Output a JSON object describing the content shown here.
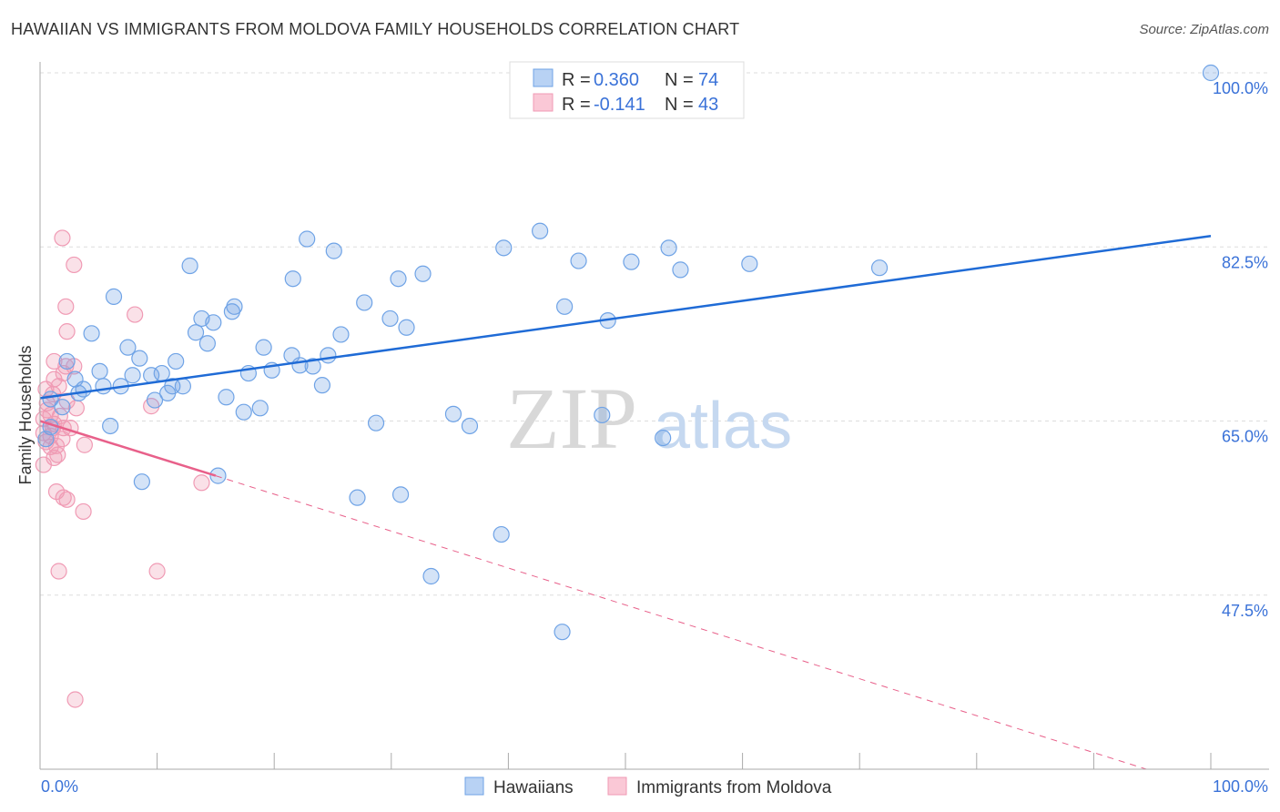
{
  "title": "HAWAIIAN VS IMMIGRANTS FROM MOLDOVA FAMILY HOUSEHOLDS CORRELATION CHART",
  "source": "Source: ZipAtlas.com",
  "watermark": "ZIPatlas",
  "chart_data": {
    "type": "scatter",
    "title": "HAWAIIAN VS IMMIGRANTS FROM MOLDOVA FAMILY HOUSEHOLDS CORRELATION CHART",
    "xlabel": "",
    "ylabel": "Family Households",
    "xlim": [
      0,
      100
    ],
    "ylim": [
      30,
      100
    ],
    "x_tick_labels": [
      "0.0%",
      "100.0%"
    ],
    "y_ticks": [
      100,
      82.5,
      65,
      47.5
    ],
    "y_tick_labels": [
      "100.0%",
      "82.5%",
      "65.0%",
      "47.5%"
    ],
    "grid": true,
    "legend_top": [
      {
        "r_label": "R = ",
        "r": "0.360",
        "n_label": "N = ",
        "n": "74"
      },
      {
        "r_label": "R = ",
        "r": "-0.141",
        "n_label": "N = ",
        "n": "43"
      }
    ],
    "series": [
      {
        "name": "Hawaiians",
        "color": "#6fa3e6",
        "line_color": "#1f6bd6",
        "trend": {
          "x0": 0,
          "y0": 67.3,
          "x1": 100,
          "y1": 83.6
        },
        "points": [
          [
            100,
            100
          ],
          [
            42.7,
            84.1
          ],
          [
            22.8,
            83.3
          ],
          [
            25.1,
            82.1
          ],
          [
            39.6,
            82.4
          ],
          [
            53.7,
            82.4
          ],
          [
            12.8,
            80.6
          ],
          [
            46.0,
            81.1
          ],
          [
            50.5,
            81.0
          ],
          [
            54.7,
            80.2
          ],
          [
            60.6,
            80.8
          ],
          [
            71.7,
            80.4
          ],
          [
            21.6,
            79.3
          ],
          [
            30.6,
            79.3
          ],
          [
            32.7,
            79.8
          ],
          [
            6.3,
            77.5
          ],
          [
            27.7,
            76.9
          ],
          [
            16.6,
            76.5
          ],
          [
            16.4,
            76.0
          ],
          [
            44.8,
            76.5
          ],
          [
            13.8,
            75.3
          ],
          [
            14.8,
            74.9
          ],
          [
            29.9,
            75.3
          ],
          [
            31.3,
            74.4
          ],
          [
            48.5,
            75.1
          ],
          [
            4.4,
            73.8
          ],
          [
            13.3,
            73.9
          ],
          [
            25.7,
            73.7
          ],
          [
            14.3,
            72.8
          ],
          [
            7.5,
            72.4
          ],
          [
            19.1,
            72.4
          ],
          [
            8.5,
            71.3
          ],
          [
            2.3,
            71.0
          ],
          [
            21.5,
            71.6
          ],
          [
            24.6,
            71.6
          ],
          [
            11.6,
            71.0
          ],
          [
            22.2,
            70.6
          ],
          [
            23.3,
            70.5
          ],
          [
            5.1,
            70.0
          ],
          [
            10.4,
            69.8
          ],
          [
            7.9,
            69.6
          ],
          [
            9.5,
            69.6
          ],
          [
            17.8,
            69.8
          ],
          [
            19.8,
            70.1
          ],
          [
            3.0,
            69.2
          ],
          [
            5.4,
            68.5
          ],
          [
            6.9,
            68.5
          ],
          [
            12.2,
            68.5
          ],
          [
            11.3,
            68.5
          ],
          [
            24.1,
            68.6
          ],
          [
            3.7,
            68.2
          ],
          [
            3.3,
            67.8
          ],
          [
            10.9,
            67.8
          ],
          [
            9.8,
            67.1
          ],
          [
            15.9,
            67.4
          ],
          [
            0.9,
            67.2
          ],
          [
            1.9,
            66.4
          ],
          [
            17.4,
            65.9
          ],
          [
            18.8,
            66.3
          ],
          [
            35.3,
            65.7
          ],
          [
            48.0,
            65.6
          ],
          [
            28.7,
            64.8
          ],
          [
            36.7,
            64.5
          ],
          [
            6.0,
            64.5
          ],
          [
            53.2,
            63.3
          ],
          [
            15.2,
            59.5
          ],
          [
            8.7,
            58.9
          ],
          [
            27.1,
            57.3
          ],
          [
            30.8,
            57.6
          ],
          [
            39.4,
            53.6
          ],
          [
            33.4,
            49.4
          ],
          [
            44.6,
            43.8
          ],
          [
            0.9,
            64.4
          ],
          [
            0.5,
            63.2
          ]
        ]
      },
      {
        "name": "Immigrants from Moldova",
        "color": "#f09ab4",
        "line_color": "#e8608a",
        "trend": {
          "x0": 0,
          "y0": 65.0,
          "x1": 15,
          "y1": 59.5,
          "dash_to_x": 94.5,
          "dash_to_y": 30
        },
        "points": [
          [
            1.9,
            83.4
          ],
          [
            2.9,
            80.7
          ],
          [
            2.2,
            76.5
          ],
          [
            8.1,
            75.7
          ],
          [
            2.3,
            74.0
          ],
          [
            1.2,
            71.0
          ],
          [
            2.2,
            70.5
          ],
          [
            1.2,
            69.2
          ],
          [
            0.5,
            68.2
          ],
          [
            1.6,
            68.5
          ],
          [
            9.5,
            66.5
          ],
          [
            3.1,
            66.3
          ],
          [
            0.6,
            66.8
          ],
          [
            0.9,
            65.6
          ],
          [
            0.3,
            65.2
          ],
          [
            1.2,
            64.7
          ],
          [
            2.0,
            64.3
          ],
          [
            2.6,
            64.3
          ],
          [
            0.9,
            63.5
          ],
          [
            1.9,
            63.2
          ],
          [
            1.4,
            62.5
          ],
          [
            3.8,
            62.6
          ],
          [
            1.5,
            61.6
          ],
          [
            0.3,
            60.6
          ],
          [
            13.8,
            58.8
          ],
          [
            1.4,
            57.9
          ],
          [
            2.0,
            57.3
          ],
          [
            2.3,
            57.1
          ],
          [
            3.7,
            55.9
          ],
          [
            1.6,
            49.9
          ],
          [
            10.0,
            49.9
          ],
          [
            3.0,
            37.0
          ],
          [
            1.1,
            64.3
          ],
          [
            0.6,
            66.1
          ],
          [
            1.7,
            65.5
          ],
          [
            2.3,
            67.0
          ],
          [
            1.1,
            67.7
          ],
          [
            0.3,
            63.8
          ],
          [
            0.9,
            62.4
          ],
          [
            2.9,
            70.5
          ],
          [
            2.0,
            69.8
          ],
          [
            0.5,
            62.9
          ],
          [
            1.2,
            61.3
          ]
        ]
      }
    ]
  }
}
